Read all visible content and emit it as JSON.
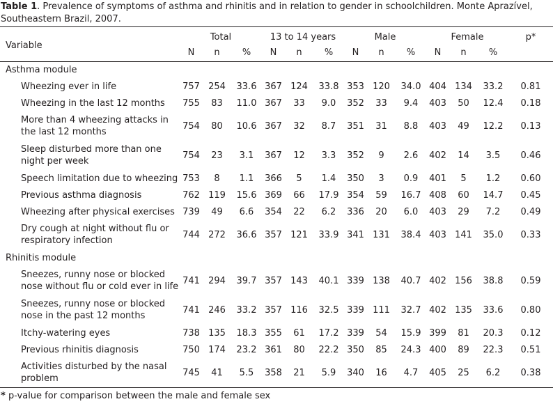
{
  "caption": {
    "label": "Table 1",
    "text": ". Prevalence of symptoms of asthma and rhinitis and in relation to gender in schoolchildren. Monte Aprazível, Southeastern Brazil, 2007."
  },
  "header": {
    "variable": "Variable",
    "groups": [
      "Total",
      "13 to 14 years",
      "Male",
      "Female"
    ],
    "p": "p*",
    "sub": [
      "N",
      "n",
      "%",
      "N",
      "n",
      "%",
      "N",
      "n",
      "%",
      "N",
      "n",
      "%"
    ]
  },
  "sections": [
    {
      "title": "Asthma module",
      "rows": [
        {
          "label": "Wheezing ever in life",
          "values": [
            "757",
            "254",
            "33.6",
            "367",
            "124",
            "33.8",
            "353",
            "120",
            "34.0",
            "404",
            "134",
            "33.2",
            "0.81"
          ]
        },
        {
          "label": "Wheezing in the last 12 months",
          "values": [
            "755",
            "83",
            "11.0",
            "367",
            "33",
            "9.0",
            "352",
            "33",
            "9.4",
            "403",
            "50",
            "12.4",
            "0.18"
          ]
        },
        {
          "label": "More than 4 wheezing attacks in the last 12 months",
          "values": [
            "754",
            "80",
            "10.6",
            "367",
            "32",
            "8.7",
            "351",
            "31",
            "8.8",
            "403",
            "49",
            "12.2",
            "0.13"
          ]
        },
        {
          "label": "Sleep disturbed more than one night per week",
          "values": [
            "754",
            "23",
            "3.1",
            "367",
            "12",
            "3.3",
            "352",
            "9",
            "2.6",
            "402",
            "14",
            "3.5",
            "0.46"
          ]
        },
        {
          "label": "Speech limitation due to wheezing",
          "values": [
            "753",
            "8",
            "1.1",
            "366",
            "5",
            "1.4",
            "350",
            "3",
            "0.9",
            "401",
            "5",
            "1.2",
            "0.60"
          ]
        },
        {
          "label": "Previous asthma diagnosis",
          "values": [
            "762",
            "119",
            "15.6",
            "369",
            "66",
            "17.9",
            "354",
            "59",
            "16.7",
            "408",
            "60",
            "14.7",
            "0.45"
          ]
        },
        {
          "label": "Wheezing after physical exercises",
          "values": [
            "739",
            "49",
            "6.6",
            "354",
            "22",
            "6.2",
            "336",
            "20",
            "6.0",
            "403",
            "29",
            "7.2",
            "0.49"
          ]
        },
        {
          "label": "Dry cough at night without flu or respiratory infection",
          "values": [
            "744",
            "272",
            "36.6",
            "357",
            "121",
            "33.9",
            "341",
            "131",
            "38.4",
            "403",
            "141",
            "35.0",
            "0.33"
          ]
        }
      ]
    },
    {
      "title": "Rhinitis module",
      "rows": [
        {
          "label": "Sneezes, runny nose or blocked nose without flu or cold ever in life",
          "values": [
            "741",
            "294",
            "39.7",
            "357",
            "143",
            "40.1",
            "339",
            "138",
            "40.7",
            "402",
            "156",
            "38.8",
            "0.59"
          ]
        },
        {
          "label": "Sneezes, runny nose or blocked nose in the past 12 months",
          "values": [
            "741",
            "246",
            "33.2",
            "357",
            "116",
            "32.5",
            "339",
            "111",
            "32.7",
            "402",
            "135",
            "33.6",
            "0.80"
          ]
        },
        {
          "label": "Itchy-watering eyes",
          "values": [
            "738",
            "135",
            "18.3",
            "355",
            "61",
            "17.2",
            "339",
            "54",
            "15.9",
            "399",
            "81",
            "20.3",
            "0.12"
          ]
        },
        {
          "label": "Previous rhinitis diagnosis",
          "values": [
            "750",
            "174",
            "23.2",
            "361",
            "80",
            "22.2",
            "350",
            "85",
            "24.3",
            "400",
            "89",
            "22.3",
            "0.51"
          ]
        },
        {
          "label": "Activities disturbed by the nasal problem",
          "values": [
            "745",
            "41",
            "5.5",
            "358",
            "21",
            "5.9",
            "340",
            "16",
            "4.7",
            "405",
            "25",
            "6.2",
            "0.38"
          ]
        }
      ]
    }
  ],
  "footnote": {
    "mark": "*",
    "text": " p-value for comparison between the male and female sex"
  }
}
